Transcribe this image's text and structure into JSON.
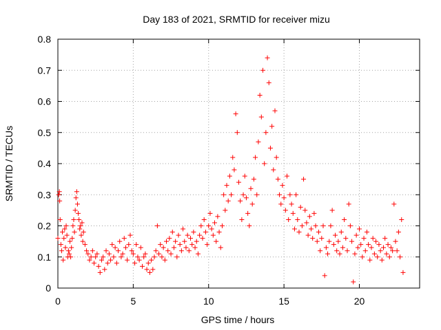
{
  "chart_data": {
    "type": "scatter",
    "title": "Day 183 of 2021, SRMTID for receiver mizu",
    "xlabel": "GPS time / hours",
    "ylabel": "SRMTID / TECUs",
    "xlim": [
      0,
      24
    ],
    "ylim": [
      0,
      0.8
    ],
    "x_ticks": [
      0,
      5,
      10,
      15,
      20
    ],
    "y_ticks": [
      0,
      0.1,
      0.2,
      0.3,
      0.4,
      0.5,
      0.6,
      0.7,
      0.8
    ],
    "x_tick_labels": [
      "0",
      "5",
      "10",
      "15",
      "20"
    ],
    "y_tick_labels": [
      "0",
      "0.1",
      "0.2",
      "0.3",
      "0.4",
      "0.5",
      "0.6",
      "0.7",
      "0.8"
    ],
    "grid": true,
    "marker": "+",
    "color": "#ff0000",
    "series": [
      {
        "name": "SRMTID",
        "points": [
          [
            0.0,
            0.16
          ],
          [
            0.05,
            0.3
          ],
          [
            0.1,
            0.31
          ],
          [
            0.12,
            0.28
          ],
          [
            0.15,
            0.22
          ],
          [
            0.2,
            0.14
          ],
          [
            0.25,
            0.12
          ],
          [
            0.3,
            0.18
          ],
          [
            0.35,
            0.09
          ],
          [
            0.4,
            0.16
          ],
          [
            0.45,
            0.19
          ],
          [
            0.5,
            0.13
          ],
          [
            0.55,
            0.2
          ],
          [
            0.6,
            0.17
          ],
          [
            0.65,
            0.1
          ],
          [
            0.7,
            0.12
          ],
          [
            0.75,
            0.11
          ],
          [
            0.8,
            0.15
          ],
          [
            0.85,
            0.1
          ],
          [
            0.9,
            0.13
          ],
          [
            0.95,
            0.16
          ],
          [
            1.0,
            0.2
          ],
          [
            1.05,
            0.22
          ],
          [
            1.1,
            0.18
          ],
          [
            1.15,
            0.25
          ],
          [
            1.2,
            0.29
          ],
          [
            1.25,
            0.31
          ],
          [
            1.3,
            0.27
          ],
          [
            1.35,
            0.24
          ],
          [
            1.4,
            0.22
          ],
          [
            1.45,
            0.19
          ],
          [
            1.5,
            0.2
          ],
          [
            1.55,
            0.17
          ],
          [
            1.6,
            0.21
          ],
          [
            1.65,
            0.15
          ],
          [
            1.7,
            0.18
          ],
          [
            1.8,
            0.14
          ],
          [
            1.9,
            0.12
          ],
          [
            2.0,
            0.11
          ],
          [
            2.1,
            0.09
          ],
          [
            2.2,
            0.1
          ],
          [
            2.3,
            0.12
          ],
          [
            2.4,
            0.08
          ],
          [
            2.5,
            0.1
          ],
          [
            2.6,
            0.11
          ],
          [
            2.7,
            0.07
          ],
          [
            2.8,
            0.05
          ],
          [
            2.9,
            0.09
          ],
          [
            3.0,
            0.1
          ],
          [
            3.1,
            0.06
          ],
          [
            3.2,
            0.12
          ],
          [
            3.3,
            0.08
          ],
          [
            3.4,
            0.11
          ],
          [
            3.5,
            0.09
          ],
          [
            3.6,
            0.14
          ],
          [
            3.7,
            0.1
          ],
          [
            3.8,
            0.13
          ],
          [
            3.9,
            0.08
          ],
          [
            4.0,
            0.12
          ],
          [
            4.1,
            0.15
          ],
          [
            4.2,
            0.1
          ],
          [
            4.3,
            0.11
          ],
          [
            4.4,
            0.16
          ],
          [
            4.5,
            0.13
          ],
          [
            4.6,
            0.09
          ],
          [
            4.7,
            0.14
          ],
          [
            4.8,
            0.17
          ],
          [
            4.9,
            0.12
          ],
          [
            5.0,
            0.11
          ],
          [
            5.1,
            0.08
          ],
          [
            5.2,
            0.14
          ],
          [
            5.3,
            0.1
          ],
          [
            5.4,
            0.09
          ],
          [
            5.5,
            0.13
          ],
          [
            5.6,
            0.07
          ],
          [
            5.7,
            0.1
          ],
          [
            5.8,
            0.11
          ],
          [
            5.9,
            0.06
          ],
          [
            6.0,
            0.08
          ],
          [
            6.1,
            0.05
          ],
          [
            6.2,
            0.09
          ],
          [
            6.3,
            0.06
          ],
          [
            6.4,
            0.1
          ],
          [
            6.5,
            0.12
          ],
          [
            6.6,
            0.2
          ],
          [
            6.7,
            0.11
          ],
          [
            6.8,
            0.14
          ],
          [
            6.9,
            0.1
          ],
          [
            7.0,
            0.13
          ],
          [
            7.1,
            0.09
          ],
          [
            7.2,
            0.15
          ],
          [
            7.3,
            0.12
          ],
          [
            7.4,
            0.16
          ],
          [
            7.5,
            0.11
          ],
          [
            7.6,
            0.18
          ],
          [
            7.7,
            0.13
          ],
          [
            7.8,
            0.15
          ],
          [
            7.9,
            0.1
          ],
          [
            8.0,
            0.17
          ],
          [
            8.1,
            0.14
          ],
          [
            8.2,
            0.12
          ],
          [
            8.3,
            0.19
          ],
          [
            8.4,
            0.15
          ],
          [
            8.5,
            0.13
          ],
          [
            8.6,
            0.17
          ],
          [
            8.7,
            0.12
          ],
          [
            8.8,
            0.16
          ],
          [
            8.9,
            0.14
          ],
          [
            9.0,
            0.18
          ],
          [
            9.1,
            0.13
          ],
          [
            9.2,
            0.15
          ],
          [
            9.3,
            0.11
          ],
          [
            9.4,
            0.17
          ],
          [
            9.5,
            0.2
          ],
          [
            9.6,
            0.16
          ],
          [
            9.7,
            0.22
          ],
          [
            9.8,
            0.18
          ],
          [
            9.9,
            0.14
          ],
          [
            10.0,
            0.2
          ],
          [
            10.1,
            0.24
          ],
          [
            10.2,
            0.19
          ],
          [
            10.3,
            0.17
          ],
          [
            10.4,
            0.21
          ],
          [
            10.5,
            0.15
          ],
          [
            10.6,
            0.23
          ],
          [
            10.7,
            0.18
          ],
          [
            10.8,
            0.13
          ],
          [
            10.9,
            0.2
          ],
          [
            11.0,
            0.3
          ],
          [
            11.1,
            0.25
          ],
          [
            11.2,
            0.33
          ],
          [
            11.3,
            0.28
          ],
          [
            11.4,
            0.36
          ],
          [
            11.5,
            0.3
          ],
          [
            11.6,
            0.42
          ],
          [
            11.7,
            0.38
          ],
          [
            11.8,
            0.56
          ],
          [
            11.9,
            0.5
          ],
          [
            12.0,
            0.34
          ],
          [
            12.1,
            0.28
          ],
          [
            12.2,
            0.22
          ],
          [
            12.3,
            0.3
          ],
          [
            12.4,
            0.36
          ],
          [
            12.5,
            0.29
          ],
          [
            12.6,
            0.24
          ],
          [
            12.7,
            0.2
          ],
          [
            12.8,
            0.32
          ],
          [
            12.9,
            0.27
          ],
          [
            13.0,
            0.35
          ],
          [
            13.1,
            0.42
          ],
          [
            13.2,
            0.3
          ],
          [
            13.3,
            0.47
          ],
          [
            13.4,
            0.62
          ],
          [
            13.5,
            0.55
          ],
          [
            13.6,
            0.7
          ],
          [
            13.7,
            0.4
          ],
          [
            13.8,
            0.5
          ],
          [
            13.9,
            0.74
          ],
          [
            14.0,
            0.66
          ],
          [
            14.1,
            0.45
          ],
          [
            14.2,
            0.52
          ],
          [
            14.3,
            0.38
          ],
          [
            14.4,
            0.57
          ],
          [
            14.5,
            0.42
          ],
          [
            14.6,
            0.35
          ],
          [
            14.7,
            0.3
          ],
          [
            14.8,
            0.27
          ],
          [
            14.9,
            0.33
          ],
          [
            15.0,
            0.29
          ],
          [
            15.1,
            0.25
          ],
          [
            15.2,
            0.36
          ],
          [
            15.3,
            0.22
          ],
          [
            15.4,
            0.3
          ],
          [
            15.5,
            0.27
          ],
          [
            15.6,
            0.24
          ],
          [
            15.7,
            0.19
          ],
          [
            15.8,
            0.3
          ],
          [
            15.9,
            0.22
          ],
          [
            16.0,
            0.18
          ],
          [
            16.1,
            0.26
          ],
          [
            16.2,
            0.2
          ],
          [
            16.3,
            0.35
          ],
          [
            16.4,
            0.25
          ],
          [
            16.5,
            0.21
          ],
          [
            16.6,
            0.17
          ],
          [
            16.7,
            0.23
          ],
          [
            16.8,
            0.19
          ],
          [
            16.9,
            0.16
          ],
          [
            17.0,
            0.24
          ],
          [
            17.1,
            0.2
          ],
          [
            17.2,
            0.15
          ],
          [
            17.3,
            0.18
          ],
          [
            17.4,
            0.12
          ],
          [
            17.5,
            0.16
          ],
          [
            17.6,
            0.2
          ],
          [
            17.7,
            0.04
          ],
          [
            17.8,
            0.13
          ],
          [
            17.9,
            0.11
          ],
          [
            18.0,
            0.15
          ],
          [
            18.1,
            0.2
          ],
          [
            18.2,
            0.25
          ],
          [
            18.3,
            0.14
          ],
          [
            18.4,
            0.17
          ],
          [
            18.5,
            0.12
          ],
          [
            18.6,
            0.15
          ],
          [
            18.7,
            0.11
          ],
          [
            18.8,
            0.18
          ],
          [
            18.9,
            0.13
          ],
          [
            19.0,
            0.22
          ],
          [
            19.1,
            0.16
          ],
          [
            19.2,
            0.12
          ],
          [
            19.3,
            0.27
          ],
          [
            19.4,
            0.2
          ],
          [
            19.5,
            0.15
          ],
          [
            19.6,
            0.02
          ],
          [
            19.7,
            0.11
          ],
          [
            19.8,
            0.17
          ],
          [
            19.9,
            0.13
          ],
          [
            20.0,
            0.19
          ],
          [
            20.1,
            0.14
          ],
          [
            20.2,
            0.1
          ],
          [
            20.3,
            0.16
          ],
          [
            20.4,
            0.12
          ],
          [
            20.5,
            0.18
          ],
          [
            20.6,
            0.14
          ],
          [
            20.7,
            0.09
          ],
          [
            20.8,
            0.13
          ],
          [
            20.9,
            0.16
          ],
          [
            21.0,
            0.11
          ],
          [
            21.1,
            0.15
          ],
          [
            21.2,
            0.1
          ],
          [
            21.3,
            0.14
          ],
          [
            21.4,
            0.12
          ],
          [
            21.5,
            0.09
          ],
          [
            21.6,
            0.13
          ],
          [
            21.7,
            0.16
          ],
          [
            21.8,
            0.11
          ],
          [
            21.9,
            0.14
          ],
          [
            22.0,
            0.1
          ],
          [
            22.1,
            0.13
          ],
          [
            22.2,
            0.12
          ],
          [
            22.3,
            0.27
          ],
          [
            22.4,
            0.15
          ],
          [
            22.5,
            0.12
          ],
          [
            22.6,
            0.18
          ],
          [
            22.7,
            0.1
          ],
          [
            22.8,
            0.22
          ],
          [
            22.9,
            0.05
          ]
        ]
      }
    ]
  }
}
